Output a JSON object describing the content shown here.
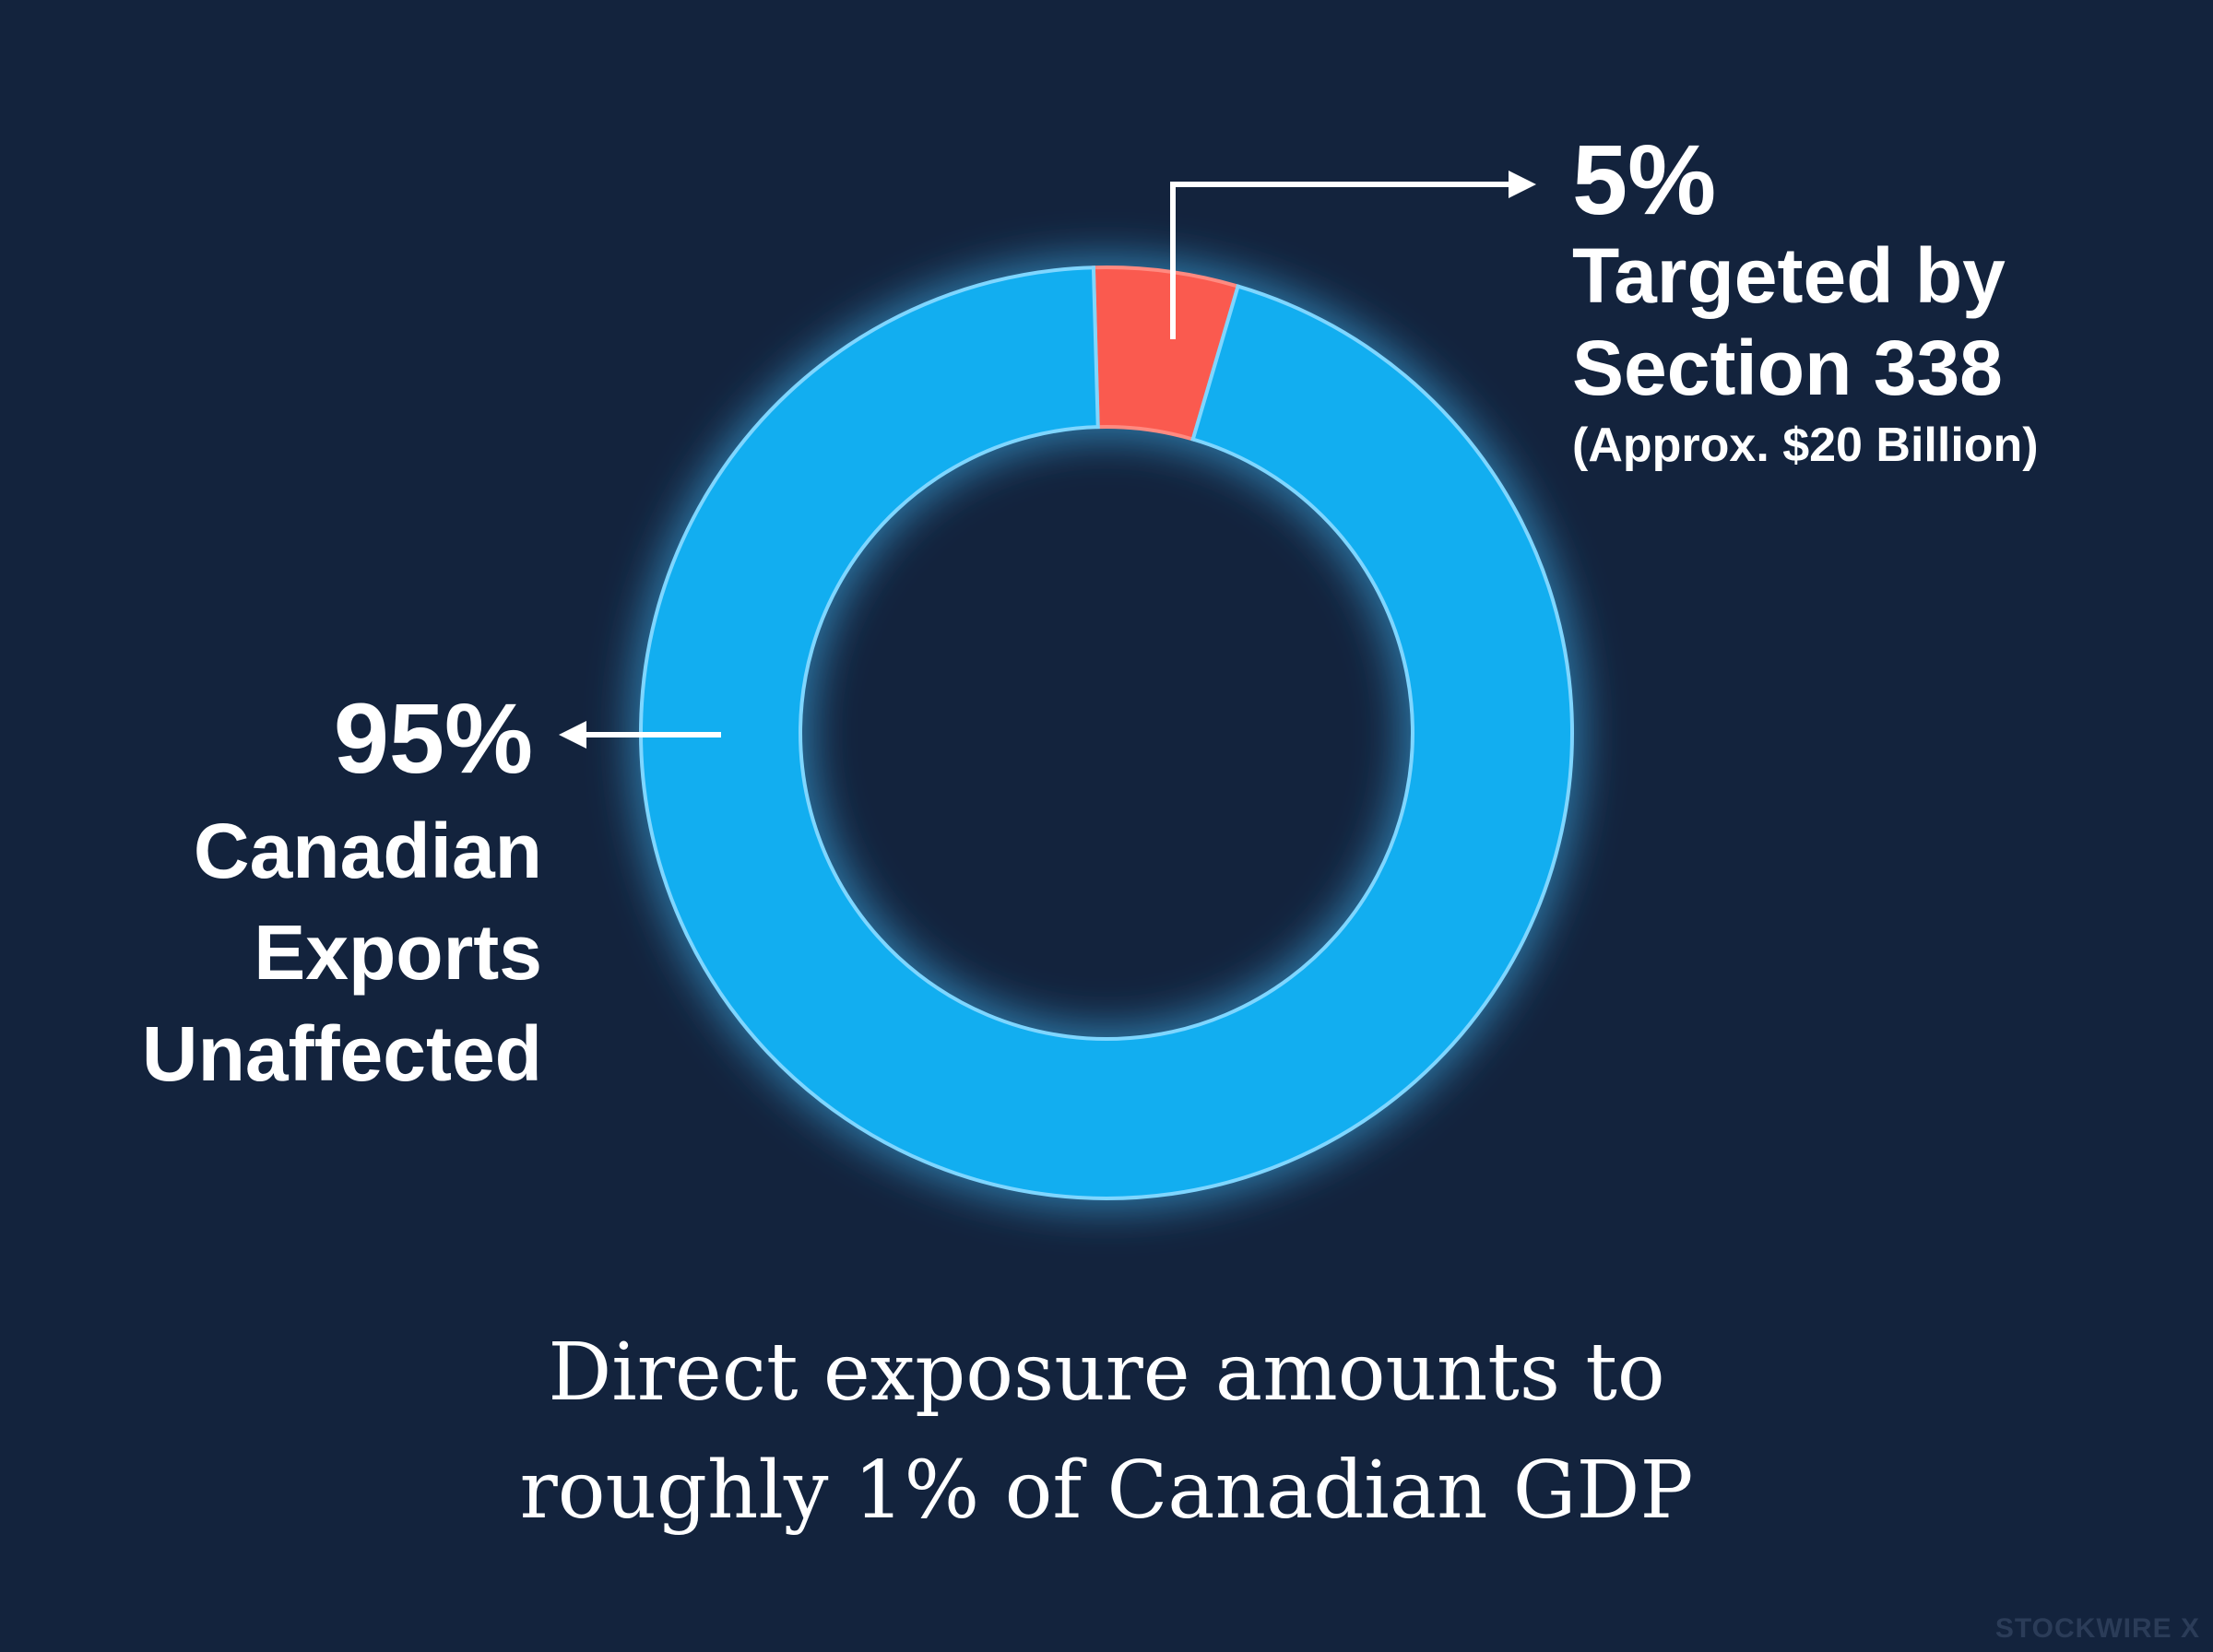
{
  "chart_data": {
    "type": "pie",
    "variant": "donut",
    "slices": [
      {
        "value": 5,
        "percent_label": "5%",
        "label_lines": [
          "Targeted by",
          "Section 338"
        ],
        "sub_label": "(Approx. $20 Billion)",
        "color": "#fa5a4f"
      },
      {
        "value": 95,
        "percent_label": "95%",
        "label_lines": [
          "Canadian",
          "Exports",
          "Unaffected"
        ],
        "color": "#12aef0"
      }
    ],
    "caption_lines": [
      "Direct exposure amounts to",
      "roughly 1% of Canadian GDP"
    ]
  },
  "colors": {
    "background": "#13233d",
    "ring_glow": "#4cc7ff",
    "text": "#ffffff"
  },
  "watermark": "STOCKWIRE X"
}
